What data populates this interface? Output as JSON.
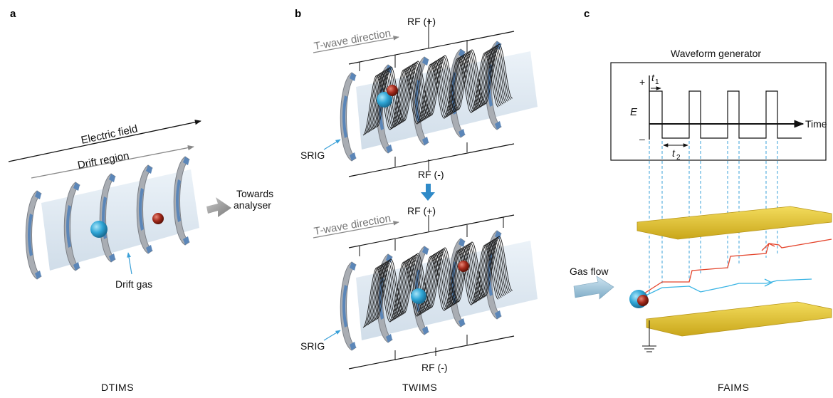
{
  "panels": {
    "a": {
      "letter": "a",
      "electric_field": "Electric field",
      "drift_region": "Drift region",
      "towards_line1": "Towards",
      "towards_line2": "analyser",
      "drift_gas": "Drift gas",
      "caption": "DTIMS"
    },
    "b": {
      "letter": "b",
      "top": {
        "direction": "T-wave direction",
        "rf_plus": "RF (+)",
        "rf_minus": "RF (-)",
        "srig": "SRIG"
      },
      "bottom": {
        "direction": "T-wave direction",
        "rf_plus": "RF (+)",
        "rf_minus": "RF (-)",
        "srig": "SRIG"
      },
      "caption": "TWIMS"
    },
    "c": {
      "letter": "c",
      "waveform_title": "Waveform generator",
      "plus": "+",
      "minus": "–",
      "e_label": "E",
      "t1_main": "t",
      "t1_sub": "1",
      "t2_main": "t",
      "t2_sub": "2",
      "time_label": "Time",
      "gas_flow": "Gas flow",
      "caption": "FAIMS"
    }
  },
  "colors": {
    "electrode_gray": "#a9adb3",
    "electrode_blue": "#5b86b8",
    "tube": "#dbe6f0",
    "ion_blue": "#2fa6d6",
    "ion_red": "#a42a1c",
    "plate_yellow": "#e8c832",
    "dashed_blue": "#3aa0d8",
    "red_path": "#e4432a",
    "cyan_path": "#3ab4e4",
    "wave_black": "#1a1a1a",
    "arrow_gray": "#8c8c8c"
  }
}
